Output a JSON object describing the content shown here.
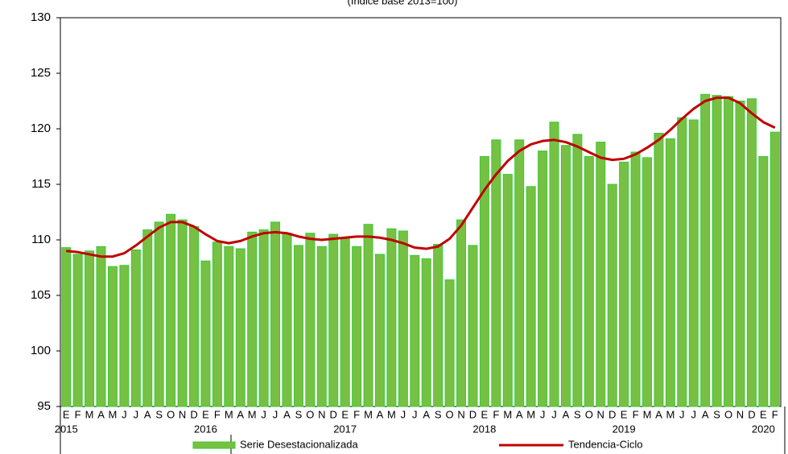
{
  "chart_data": {
    "type": "bar-line",
    "subtitle": "(Índice base 2013=100)",
    "categories": [
      "E",
      "F",
      "M",
      "A",
      "M",
      "J",
      "J",
      "A",
      "S",
      "O",
      "N",
      "D",
      "E",
      "F",
      "M",
      "A",
      "M",
      "J",
      "J",
      "A",
      "S",
      "O",
      "N",
      "D",
      "E",
      "F",
      "M",
      "A",
      "M",
      "J",
      "J",
      "A",
      "S",
      "O",
      "N",
      "D",
      "E",
      "F",
      "M",
      "A",
      "M",
      "J",
      "J",
      "A",
      "S",
      "O",
      "N",
      "D",
      "E",
      "F",
      "M",
      "A",
      "M",
      "J",
      "J",
      "A",
      "S",
      "O",
      "N",
      "D",
      "E",
      "F"
    ],
    "years": [
      "2015",
      "2016",
      "2017",
      "2018",
      "2019",
      "2020"
    ],
    "series": [
      {
        "name": "Serie Desestacionalizada",
        "type": "bar",
        "color": "#78c043",
        "stroke": "#33cc33",
        "values": [
          109.3,
          108.7,
          109.0,
          109.4,
          107.6,
          107.7,
          109.1,
          110.9,
          111.6,
          112.3,
          111.8,
          111.2,
          108.1,
          109.8,
          109.4,
          109.2,
          110.7,
          110.9,
          111.6,
          110.6,
          109.5,
          110.6,
          109.4,
          110.5,
          110.2,
          109.4,
          111.4,
          108.7,
          111.0,
          110.8,
          108.6,
          108.3,
          109.6,
          106.4,
          111.8,
          109.5,
          117.5,
          119.0,
          115.9,
          119.0,
          114.8,
          118.0,
          120.6,
          118.5,
          119.5,
          117.5,
          118.8,
          115.0,
          117.0,
          117.9,
          117.4,
          119.6,
          119.1,
          121.0,
          120.8,
          123.1,
          123.0,
          122.9,
          122.5,
          122.7,
          117.5,
          119.7
        ]
      },
      {
        "name": "Tendencia-Ciclo",
        "type": "line",
        "color": "#c00000",
        "values": [
          109.0,
          108.9,
          108.7,
          108.5,
          108.5,
          108.8,
          109.5,
          110.3,
          111.1,
          111.6,
          111.6,
          111.2,
          110.5,
          109.9,
          109.7,
          109.9,
          110.3,
          110.6,
          110.7,
          110.6,
          110.3,
          110.1,
          110.0,
          110.1,
          110.2,
          110.3,
          110.3,
          110.2,
          110.0,
          109.7,
          109.3,
          109.2,
          109.4,
          110.1,
          111.3,
          112.9,
          114.5,
          115.9,
          117.1,
          118.0,
          118.6,
          118.9,
          119.0,
          118.8,
          118.4,
          117.9,
          117.4,
          117.2,
          117.3,
          117.7,
          118.3,
          119.0,
          119.9,
          120.9,
          121.8,
          122.5,
          122.8,
          122.8,
          122.3,
          121.4,
          120.6,
          120.1
        ]
      }
    ],
    "ylim": [
      95,
      130
    ],
    "yticks": [
      95,
      100,
      105,
      110,
      115,
      120,
      125,
      130
    ]
  }
}
